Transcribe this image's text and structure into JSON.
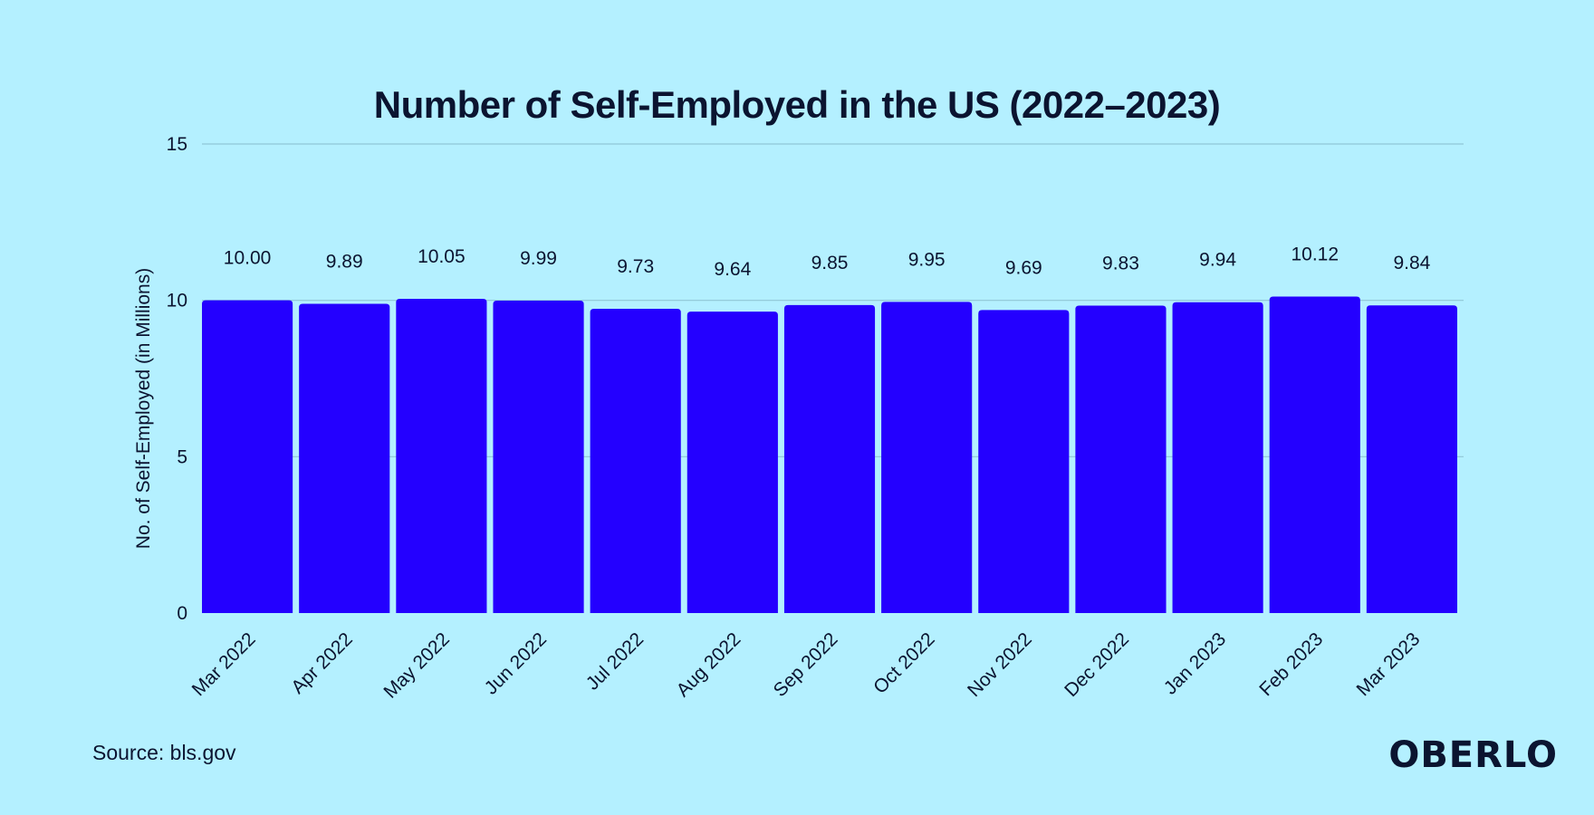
{
  "chart_data": {
    "type": "bar",
    "title": "Number of Self-Employed in the US (2022–2023)",
    "xlabel": "",
    "ylabel": "No. of Self-Employed (in Millions)",
    "ylim": [
      0,
      15
    ],
    "yticks": [
      0,
      5,
      10,
      15
    ],
    "grid": true,
    "categories": [
      "Mar 2022",
      "Apr 2022",
      "May 2022",
      "Jun 2022",
      "Jul 2022",
      "Aug 2022",
      "Sep 2022",
      "Oct 2022",
      "Nov 2022",
      "Dec 2022",
      "Jan 2023",
      "Feb 2023",
      "Mar 2023"
    ],
    "values": [
      10.0,
      9.89,
      10.05,
      9.99,
      9.73,
      9.64,
      9.85,
      9.95,
      9.69,
      9.83,
      9.94,
      10.12,
      9.84
    ],
    "value_labels": [
      "10.00",
      "9.89",
      "10.05",
      "9.99",
      "9.73",
      "9.64",
      "9.85",
      "9.95",
      "9.69",
      "9.83",
      "9.94",
      "10.12",
      "9.84"
    ],
    "bar_color": "#2400ff",
    "grid_color": "#8fc6d6"
  },
  "footer": {
    "source": "Source: bls.gov",
    "brand": "OBERLO"
  },
  "colors": {
    "background": "#b4f0ff",
    "text": "#0b1430"
  }
}
